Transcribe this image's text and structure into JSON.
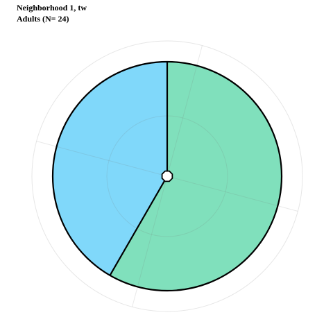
{
  "chart_data": {
    "type": "pie",
    "title": "Neighborhood 1, tw",
    "subtitle": "Adults (N= 24)",
    "slices": [
      {
        "value": 14,
        "color": "#80e0bc"
      },
      {
        "value": 10,
        "color": "#80d8fa"
      }
    ],
    "start_angle_deg": 0,
    "direction": "clockwise",
    "legend": "none",
    "grid": true
  }
}
